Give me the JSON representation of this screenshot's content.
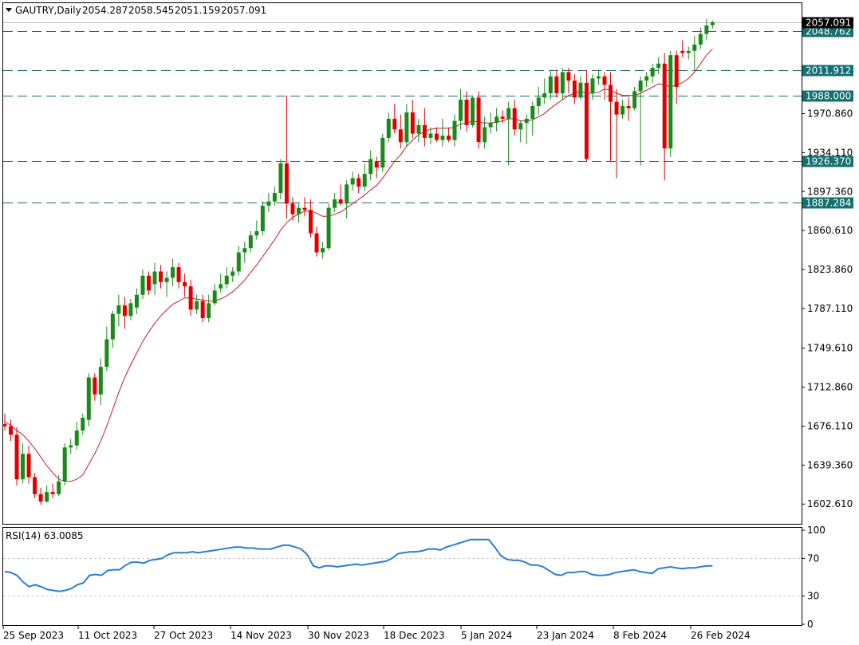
{
  "chart_data": [
    {
      "type": "candlestick",
      "symbol_timeframe": "GAUTRY,Daily",
      "ohlc_header": {
        "open": "2054.287",
        "high": "2058.545",
        "low": "2051.159",
        "close": "2057.091"
      },
      "ylim": [
        1584.0,
        2075.0
      ],
      "y_tick_labels": [
        "2048.762",
        "1970.860",
        "1934.110",
        "1897.360",
        "1860.610",
        "1823.860",
        "1787.110",
        "1749.610",
        "1712.860",
        "1676.110",
        "1639.360",
        "1602.610"
      ],
      "x_tick_labels": [
        "25 Sep 2023",
        "11 Oct 2023",
        "27 Oct 2023",
        "14 Nov 2023",
        "30 Nov 2023",
        "18 Dec 2023",
        "5 Jan 2024",
        "23 Jan 2024",
        "8 Feb 2024",
        "26 Feb 2024"
      ],
      "horizontal_levels": [
        {
          "value": 2048.762,
          "label": "2048.762"
        },
        {
          "value": 2011.912,
          "label": "2011.912"
        },
        {
          "value": 1988.0,
          "label": "1988.000"
        },
        {
          "value": 1926.37,
          "label": "1926.370"
        },
        {
          "value": 1887.284,
          "label": "1887.284"
        }
      ],
      "current_price": {
        "value": 2057.091,
        "label": "2057.091"
      },
      "ma_color": "#c0202a",
      "bull_color": "#1a8a1a",
      "bear_color": "#e00000",
      "candles": [
        {
          "o": 1678,
          "h": 1688,
          "l": 1672,
          "c": 1676
        },
        {
          "o": 1676,
          "h": 1682,
          "l": 1662,
          "c": 1668
        },
        {
          "o": 1668,
          "h": 1675,
          "l": 1620,
          "c": 1626
        },
        {
          "o": 1626,
          "h": 1660,
          "l": 1622,
          "c": 1650
        },
        {
          "o": 1650,
          "h": 1658,
          "l": 1622,
          "c": 1628
        },
        {
          "o": 1628,
          "h": 1632,
          "l": 1608,
          "c": 1612
        },
        {
          "o": 1612,
          "h": 1618,
          "l": 1602,
          "c": 1605
        },
        {
          "o": 1605,
          "h": 1620,
          "l": 1604,
          "c": 1614
        },
        {
          "o": 1614,
          "h": 1622,
          "l": 1608,
          "c": 1612
        },
        {
          "o": 1612,
          "h": 1630,
          "l": 1610,
          "c": 1624
        },
        {
          "o": 1624,
          "h": 1660,
          "l": 1620,
          "c": 1656
        },
        {
          "o": 1656,
          "h": 1664,
          "l": 1650,
          "c": 1658
        },
        {
          "o": 1658,
          "h": 1680,
          "l": 1654,
          "c": 1672
        },
        {
          "o": 1672,
          "h": 1688,
          "l": 1668,
          "c": 1684
        },
        {
          "o": 1682,
          "h": 1726,
          "l": 1676,
          "c": 1722
        },
        {
          "o": 1722,
          "h": 1726,
          "l": 1700,
          "c": 1706
        },
        {
          "o": 1706,
          "h": 1740,
          "l": 1696,
          "c": 1732
        },
        {
          "o": 1732,
          "h": 1770,
          "l": 1728,
          "c": 1758
        },
        {
          "o": 1758,
          "h": 1785,
          "l": 1750,
          "c": 1782
        },
        {
          "o": 1782,
          "h": 1800,
          "l": 1770,
          "c": 1790
        },
        {
          "o": 1790,
          "h": 1798,
          "l": 1768,
          "c": 1780
        },
        {
          "o": 1780,
          "h": 1796,
          "l": 1776,
          "c": 1792
        },
        {
          "o": 1788,
          "h": 1806,
          "l": 1782,
          "c": 1800
        },
        {
          "o": 1800,
          "h": 1824,
          "l": 1796,
          "c": 1818
        },
        {
          "o": 1818,
          "h": 1822,
          "l": 1800,
          "c": 1804
        },
        {
          "o": 1810,
          "h": 1830,
          "l": 1800,
          "c": 1822
        },
        {
          "o": 1822,
          "h": 1828,
          "l": 1806,
          "c": 1812
        },
        {
          "o": 1812,
          "h": 1822,
          "l": 1798,
          "c": 1816
        },
        {
          "o": 1816,
          "h": 1834,
          "l": 1808,
          "c": 1826
        },
        {
          "o": 1826,
          "h": 1830,
          "l": 1806,
          "c": 1812
        },
        {
          "o": 1812,
          "h": 1820,
          "l": 1798,
          "c": 1808
        },
        {
          "o": 1808,
          "h": 1814,
          "l": 1780,
          "c": 1786
        },
        {
          "o": 1786,
          "h": 1800,
          "l": 1782,
          "c": 1794
        },
        {
          "o": 1794,
          "h": 1800,
          "l": 1774,
          "c": 1778
        },
        {
          "o": 1778,
          "h": 1800,
          "l": 1774,
          "c": 1792
        },
        {
          "o": 1792,
          "h": 1810,
          "l": 1790,
          "c": 1804
        },
        {
          "o": 1806,
          "h": 1820,
          "l": 1802,
          "c": 1810
        },
        {
          "o": 1810,
          "h": 1826,
          "l": 1806,
          "c": 1818
        },
        {
          "o": 1818,
          "h": 1826,
          "l": 1812,
          "c": 1822
        },
        {
          "o": 1822,
          "h": 1846,
          "l": 1818,
          "c": 1840
        },
        {
          "o": 1840,
          "h": 1850,
          "l": 1830,
          "c": 1844
        },
        {
          "o": 1844,
          "h": 1860,
          "l": 1840,
          "c": 1856
        },
        {
          "o": 1856,
          "h": 1870,
          "l": 1852,
          "c": 1860
        },
        {
          "o": 1860,
          "h": 1888,
          "l": 1856,
          "c": 1884
        },
        {
          "o": 1884,
          "h": 1896,
          "l": 1878,
          "c": 1888
        },
        {
          "o": 1888,
          "h": 1902,
          "l": 1884,
          "c": 1896
        },
        {
          "o": 1896,
          "h": 1928,
          "l": 1890,
          "c": 1924
        },
        {
          "o": 1924,
          "h": 1988,
          "l": 1872,
          "c": 1886
        },
        {
          "o": 1886,
          "h": 1892,
          "l": 1870,
          "c": 1876
        },
        {
          "o": 1876,
          "h": 1886,
          "l": 1868,
          "c": 1882
        },
        {
          "o": 1882,
          "h": 1892,
          "l": 1874,
          "c": 1880
        },
        {
          "o": 1880,
          "h": 1890,
          "l": 1854,
          "c": 1858
        },
        {
          "o": 1858,
          "h": 1864,
          "l": 1836,
          "c": 1840
        },
        {
          "o": 1840,
          "h": 1850,
          "l": 1834,
          "c": 1844
        },
        {
          "o": 1844,
          "h": 1886,
          "l": 1842,
          "c": 1882
        },
        {
          "o": 1882,
          "h": 1896,
          "l": 1878,
          "c": 1890
        },
        {
          "o": 1890,
          "h": 1904,
          "l": 1884,
          "c": 1886
        },
        {
          "o": 1886,
          "h": 1908,
          "l": 1872,
          "c": 1904
        },
        {
          "o": 1904,
          "h": 1916,
          "l": 1898,
          "c": 1910
        },
        {
          "o": 1910,
          "h": 1914,
          "l": 1896,
          "c": 1902
        },
        {
          "o": 1902,
          "h": 1924,
          "l": 1898,
          "c": 1914
        },
        {
          "o": 1914,
          "h": 1936,
          "l": 1908,
          "c": 1928
        },
        {
          "o": 1926,
          "h": 1930,
          "l": 1910,
          "c": 1920
        },
        {
          "o": 1920,
          "h": 1952,
          "l": 1916,
          "c": 1948
        },
        {
          "o": 1948,
          "h": 1972,
          "l": 1944,
          "c": 1966
        },
        {
          "o": 1966,
          "h": 1980,
          "l": 1952,
          "c": 1956
        },
        {
          "o": 1956,
          "h": 1970,
          "l": 1938,
          "c": 1944
        },
        {
          "o": 1944,
          "h": 1980,
          "l": 1940,
          "c": 1972
        },
        {
          "o": 1972,
          "h": 1984,
          "l": 1948,
          "c": 1952
        },
        {
          "o": 1952,
          "h": 1966,
          "l": 1944,
          "c": 1960
        },
        {
          "o": 1960,
          "h": 1976,
          "l": 1940,
          "c": 1948
        },
        {
          "o": 1948,
          "h": 1958,
          "l": 1942,
          "c": 1952
        },
        {
          "o": 1952,
          "h": 1958,
          "l": 1944,
          "c": 1946
        },
        {
          "o": 1946,
          "h": 1966,
          "l": 1940,
          "c": 1950
        },
        {
          "o": 1950,
          "h": 1958,
          "l": 1944,
          "c": 1946
        },
        {
          "o": 1946,
          "h": 1970,
          "l": 1940,
          "c": 1964
        },
        {
          "o": 1964,
          "h": 1994,
          "l": 1956,
          "c": 1984
        },
        {
          "o": 1984,
          "h": 1992,
          "l": 1954,
          "c": 1960
        },
        {
          "o": 1960,
          "h": 1988,
          "l": 1958,
          "c": 1986
        },
        {
          "o": 1986,
          "h": 1992,
          "l": 1938,
          "c": 1944
        },
        {
          "o": 1944,
          "h": 1968,
          "l": 1938,
          "c": 1958
        },
        {
          "o": 1958,
          "h": 1972,
          "l": 1952,
          "c": 1962
        },
        {
          "o": 1962,
          "h": 1976,
          "l": 1954,
          "c": 1968
        },
        {
          "o": 1968,
          "h": 1974,
          "l": 1962,
          "c": 1966
        },
        {
          "o": 1966,
          "h": 1982,
          "l": 1922,
          "c": 1976
        },
        {
          "o": 1976,
          "h": 1984,
          "l": 1950,
          "c": 1956
        },
        {
          "o": 1956,
          "h": 1964,
          "l": 1944,
          "c": 1962
        },
        {
          "o": 1962,
          "h": 1970,
          "l": 1942,
          "c": 1966
        },
        {
          "o": 1966,
          "h": 1982,
          "l": 1950,
          "c": 1978
        },
        {
          "o": 1978,
          "h": 1996,
          "l": 1970,
          "c": 1986
        },
        {
          "o": 1986,
          "h": 2004,
          "l": 1980,
          "c": 1990
        },
        {
          "o": 1990,
          "h": 2012,
          "l": 1984,
          "c": 2006
        },
        {
          "o": 2006,
          "h": 2012,
          "l": 1986,
          "c": 1990
        },
        {
          "o": 1990,
          "h": 2014,
          "l": 1984,
          "c": 2010
        },
        {
          "o": 2010,
          "h": 2014,
          "l": 1990,
          "c": 2002
        },
        {
          "o": 2002,
          "h": 2008,
          "l": 1980,
          "c": 1986
        },
        {
          "o": 1986,
          "h": 2006,
          "l": 1984,
          "c": 2000
        },
        {
          "o": 2000,
          "h": 2012,
          "l": 1926,
          "c": 1928
        },
        {
          "o": 1990,
          "h": 2008,
          "l": 1984,
          "c": 2004
        },
        {
          "o": 2004,
          "h": 2012,
          "l": 1998,
          "c": 2006
        },
        {
          "o": 2006,
          "h": 2010,
          "l": 1984,
          "c": 1998
        },
        {
          "o": 1998,
          "h": 2010,
          "l": 1926,
          "c": 1982
        },
        {
          "o": 1982,
          "h": 1994,
          "l": 1910,
          "c": 1970
        },
        {
          "o": 1970,
          "h": 1984,
          "l": 1966,
          "c": 1978
        },
        {
          "o": 1978,
          "h": 1986,
          "l": 1964,
          "c": 1976
        },
        {
          "o": 1976,
          "h": 1996,
          "l": 1974,
          "c": 1992
        },
        {
          "o": 1992,
          "h": 2006,
          "l": 1922,
          "c": 2002
        },
        {
          "o": 2002,
          "h": 2010,
          "l": 1996,
          "c": 2006
        },
        {
          "o": 2006,
          "h": 2018,
          "l": 2000,
          "c": 2014
        },
        {
          "o": 2014,
          "h": 2024,
          "l": 2008,
          "c": 2018
        },
        {
          "o": 2018,
          "h": 2028,
          "l": 1908,
          "c": 1938
        },
        {
          "o": 1938,
          "h": 2030,
          "l": 1930,
          "c": 2026
        },
        {
          "o": 2026,
          "h": 2030,
          "l": 1980,
          "c": 1996
        },
        {
          "o": 2030,
          "h": 2040,
          "l": 2024,
          "c": 2028
        },
        {
          "o": 2028,
          "h": 2034,
          "l": 2022,
          "c": 2030
        },
        {
          "o": 2030,
          "h": 2044,
          "l": 2012,
          "c": 2036
        },
        {
          "o": 2036,
          "h": 2052,
          "l": 2032,
          "c": 2046
        },
        {
          "o": 2046,
          "h": 2060,
          "l": 2040,
          "c": 2054
        },
        {
          "o": 2054.287,
          "h": 2058.545,
          "l": 2051.159,
          "c": 2057.091
        }
      ],
      "ma": [
        1680,
        1677,
        1672,
        1668,
        1662,
        1655,
        1647,
        1639,
        1632,
        1626,
        1624,
        1624,
        1626,
        1630,
        1640,
        1650,
        1662,
        1676,
        1692,
        1708,
        1722,
        1734,
        1745,
        1756,
        1765,
        1773,
        1780,
        1786,
        1791,
        1794,
        1797,
        1797,
        1796,
        1795,
        1794,
        1794,
        1796,
        1799,
        1803,
        1808,
        1814,
        1821,
        1828,
        1836,
        1844,
        1852,
        1861,
        1868,
        1873,
        1876,
        1879,
        1879,
        1877,
        1874,
        1874,
        1876,
        1878,
        1882,
        1886,
        1890,
        1894,
        1899,
        1903,
        1910,
        1918,
        1926,
        1932,
        1940,
        1946,
        1951,
        1954,
        1956,
        1957,
        1957,
        1957,
        1958,
        1961,
        1962,
        1964,
        1963,
        1962,
        1962,
        1963,
        1964,
        1966,
        1966,
        1964,
        1964,
        1965,
        1968,
        1971,
        1976,
        1980,
        1984,
        1988,
        1990,
        1992,
        1990,
        1990,
        1991,
        1994,
        1993,
        1990,
        1988,
        1988,
        1988,
        1990,
        1993,
        1996,
        1999,
        1998,
        1996,
        1998,
        2000,
        2004,
        2010,
        2018,
        2026,
        2032
      ]
    },
    {
      "type": "line",
      "indicator_label": "RSI(14) 63.0085",
      "ylim": [
        0,
        100
      ],
      "y_tick_labels": [
        "100",
        "70",
        "30",
        "0"
      ],
      "levels": [
        70,
        30
      ],
      "color": "#2a7fd4",
      "values": [
        56,
        55,
        52,
        45,
        40,
        42,
        40,
        37,
        36,
        35,
        36,
        38,
        42,
        44,
        52,
        53,
        52,
        57,
        58,
        58,
        63,
        66,
        66,
        65,
        68,
        69,
        70,
        74,
        76,
        76,
        76,
        77,
        76,
        77,
        78,
        79,
        80,
        81,
        82,
        82,
        81,
        81,
        80,
        80,
        80,
        82,
        84,
        84,
        82,
        80,
        74,
        62,
        60,
        62,
        62,
        61,
        62,
        63,
        64,
        63,
        64,
        65,
        66,
        67,
        70,
        75,
        76,
        77,
        77,
        78,
        80,
        80,
        79,
        82,
        84,
        86,
        88,
        90,
        90,
        90,
        90,
        82,
        73,
        69,
        68,
        68,
        66,
        63,
        63,
        61,
        57,
        53,
        52,
        55,
        55,
        56,
        56,
        53,
        52,
        52,
        53,
        55,
        56,
        57,
        58,
        56,
        55,
        54,
        59,
        60,
        61,
        60,
        59,
        60,
        60,
        61,
        62,
        62
      ]
    }
  ]
}
